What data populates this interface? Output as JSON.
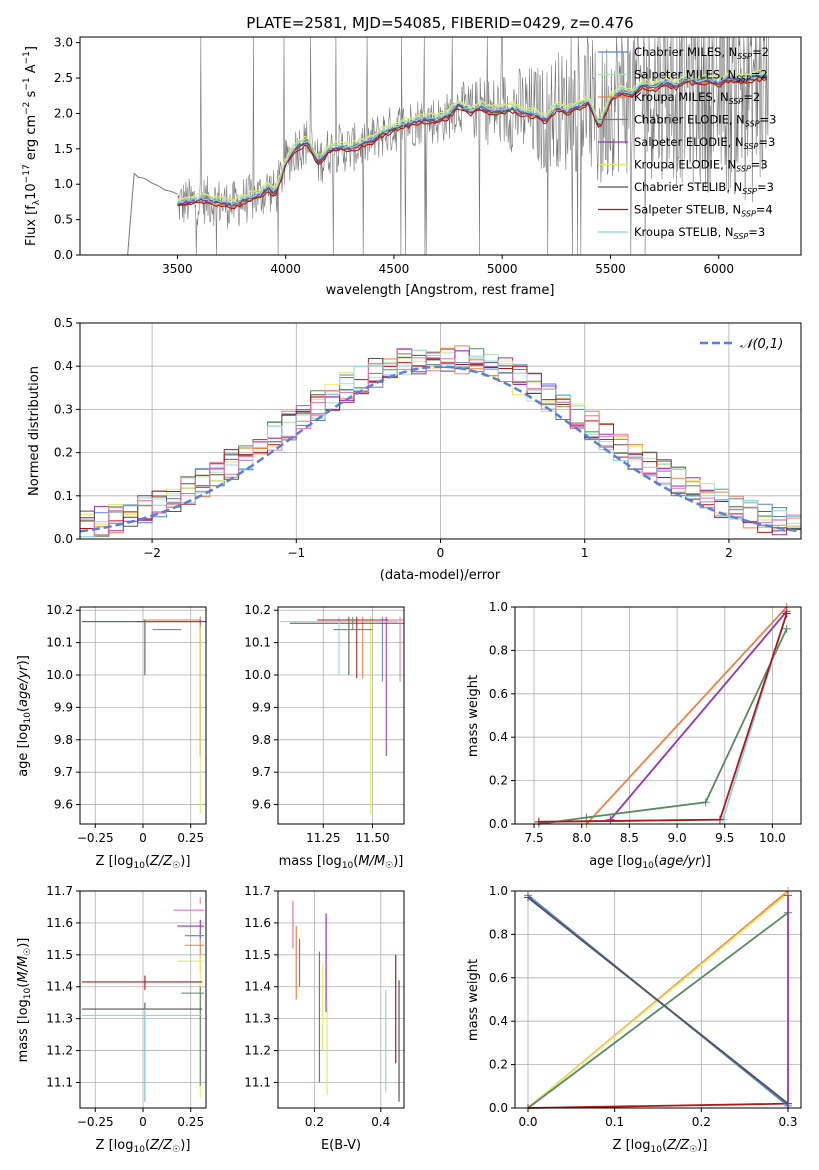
{
  "figure_title": "PLATE=2581, MJD=54085, FIBERID=0429, z=0.476",
  "chart_data": [
    {
      "id": "spectrum",
      "type": "line",
      "xlabel": "wavelength [Angstrom, rest frame]",
      "ylabel": "Flux [f_λ 10^-17 erg cm^-2 s^-1 A^-1]",
      "xlim": [
        3050,
        6380
      ],
      "ylim": [
        0,
        3.08
      ],
      "xticks": [
        3500,
        4000,
        4500,
        5000,
        5500,
        6000
      ],
      "yticks": [
        0.0,
        0.5,
        1.0,
        1.5,
        2.0,
        2.5,
        3.0
      ],
      "grid": false,
      "legend_position": "top-right",
      "legend_sub": "SSP",
      "legend": [
        {
          "name": "Chabrier MILES, N_SSP=2",
          "prefix": "Chabrier MILES, N",
          "suffix": "=2",
          "color": "#5b7fdc"
        },
        {
          "name": "Salpeter MILES, N_SSP=2",
          "prefix": "Salpeter MILES, N",
          "suffix": "=2",
          "color": "#b4e2b4"
        },
        {
          "name": "Kroupa MILES, N_SSP=2",
          "prefix": "Kroupa MILES, N",
          "suffix": "=2",
          "color": "#f28040"
        },
        {
          "name": "Chabrier ELODIE, N_SSP=3",
          "prefix": "Chabrier ELODIE, N",
          "suffix": "=3",
          "color": "#5a8a62"
        },
        {
          "name": "Salpeter ELODIE, N_SSP=3",
          "prefix": "Salpeter ELODIE, N",
          "suffix": "=3",
          "color": "#9b30c0"
        },
        {
          "name": "Kroupa ELODIE, N_SSP=3",
          "prefix": "Kroupa ELODIE, N",
          "suffix": "=3",
          "color": "#e0ec6a"
        },
        {
          "name": "Chabrier STELIB, N_SSP=3",
          "prefix": "Chabrier STELIB, N",
          "suffix": "=3",
          "color": "#555555"
        },
        {
          "name": "Salpeter STELIB, N_SSP=4",
          "prefix": "Salpeter STELIB, N",
          "suffix": "=4",
          "color": "#b01818"
        },
        {
          "name": "Kroupa STELIB, N_SSP=3",
          "prefix": "Kroupa STELIB, N",
          "suffix": "=3",
          "color": "#8ad4e4"
        }
      ],
      "model_x": [
        3500,
        3560,
        3620,
        3700,
        3760,
        3800,
        3840,
        3880,
        3920,
        3950,
        3970,
        4000,
        4050,
        4100,
        4150,
        4200,
        4250,
        4300,
        4350,
        4400,
        4450,
        4500,
        4550,
        4600,
        4650,
        4700,
        4750,
        4800,
        4850,
        4900,
        4950,
        5000,
        5050,
        5100,
        5150,
        5200,
        5250,
        5300,
        5350,
        5400,
        5450,
        5500,
        5550,
        5600,
        5650,
        5700,
        5750,
        5800,
        5850,
        5900,
        5950,
        6000,
        6050,
        6100,
        6150,
        6200
      ],
      "model_y": [
        0.72,
        0.75,
        0.78,
        0.74,
        0.7,
        0.76,
        0.8,
        0.84,
        0.95,
        0.85,
        1.02,
        1.3,
        1.52,
        1.6,
        1.3,
        1.48,
        1.52,
        1.5,
        1.56,
        1.62,
        1.72,
        1.78,
        1.84,
        1.88,
        1.92,
        1.9,
        1.96,
        2.12,
        2.02,
        2.08,
        2.02,
        2.04,
        2.06,
        2.0,
        1.98,
        1.9,
        2.08,
        2.02,
        2.1,
        2.16,
        1.8,
        2.2,
        2.3,
        2.26,
        2.4,
        2.36,
        2.44,
        2.38,
        2.48,
        2.44,
        2.46,
        2.42,
        2.5,
        2.46,
        2.48,
        2.52
      ],
      "data_continuum_x": [
        3300,
        3320,
        3350,
        3380,
        3410,
        3440,
        3470,
        3500
      ],
      "data_continuum_y": [
        1.15,
        1.1,
        1.08,
        1.02,
        0.98,
        0.92,
        0.9,
        0.86
      ]
    },
    {
      "id": "residuals",
      "type": "bar",
      "xlabel": "(data-model)/error",
      "ylabel": "Normed distribution",
      "xlim": [
        -2.5,
        2.5
      ],
      "ylim": [
        0,
        0.5
      ],
      "xticks": [
        -2,
        -1,
        0,
        1,
        2
      ],
      "yticks": [
        0.0,
        0.1,
        0.2,
        0.3,
        0.4,
        0.5
      ],
      "grid": true,
      "legend_position": "top-right",
      "reference_label": "𝒩(0,1)",
      "reference_color": "#5b7fdc",
      "bin_edges_start": -2.5,
      "bin_width": 0.1
    },
    {
      "id": "age-vs-Z",
      "type": "scatter",
      "xlabel": "Z [log10(Z/Z☉)]",
      "ylabel": "age [log10(age/yr)]",
      "xlim": [
        -0.33,
        0.33
      ],
      "ylim": [
        9.54,
        10.21
      ],
      "xticks": [
        -0.25,
        0.0,
        0.25
      ],
      "ytick_labels": [
        "9.6",
        "9.7",
        "9.8",
        "9.9",
        "10.0",
        "10.1",
        "10.2"
      ],
      "yticks": [
        9.6,
        9.7,
        9.8,
        9.9,
        10.0,
        10.1,
        10.2
      ],
      "grid": true
    },
    {
      "id": "age-vs-mass",
      "type": "scatter",
      "xlabel": "mass [log10(M/M☉)]",
      "ylabel": "",
      "xlim": [
        11.02,
        11.66
      ],
      "ylim": [
        9.54,
        10.21
      ],
      "xticks": [
        11.25,
        11.5
      ],
      "xtick_labels": [
        "11.25",
        "11.50"
      ],
      "yticks": [
        9.6,
        9.7,
        9.8,
        9.9,
        10.0,
        10.1,
        10.2
      ],
      "ytick_labels": [
        "9.6",
        "9.7",
        "9.8",
        "9.9",
        "10.0",
        "10.1",
        "10.2"
      ],
      "grid": true
    },
    {
      "id": "mass-weight-vs-age",
      "type": "line",
      "xlabel": "age [log10(age/yr)]",
      "ylabel": "mass weight",
      "xlim": [
        7.3,
        10.3
      ],
      "ylim": [
        0,
        1.0
      ],
      "xticks": [
        7.5,
        8.0,
        8.5,
        9.0,
        9.5,
        10.0
      ],
      "xtick_labels": [
        "7.5",
        "8.0",
        "8.5",
        "9.0",
        "9.5",
        "10.0"
      ],
      "yticks": [
        0.0,
        0.2,
        0.4,
        0.6,
        0.8,
        1.0
      ],
      "ytick_labels": [
        "0.0",
        "0.2",
        "0.4",
        "0.6",
        "0.8",
        "1.0"
      ],
      "grid": true,
      "series": [
        {
          "color": "#f28040",
          "x": [
            8.05,
            10.15
          ],
          "y": [
            0.0,
            1.0
          ]
        },
        {
          "color": "#e0ec6a",
          "x": [
            8.3,
            10.15
          ],
          "y": [
            0.02,
            0.98
          ]
        },
        {
          "color": "#9b30c0",
          "x": [
            8.3,
            10.15
          ],
          "y": [
            0.02,
            0.98
          ]
        },
        {
          "color": "#5a8a62",
          "x": [
            7.55,
            8.05,
            9.3,
            10.15
          ],
          "y": [
            0.0,
            0.03,
            0.1,
            0.9
          ]
        },
        {
          "color": "#8ad4e4",
          "x": [
            7.55,
            9.48,
            10.15
          ],
          "y": [
            0.01,
            0.02,
            0.97
          ]
        },
        {
          "color": "#b01818",
          "x": [
            7.55,
            9.45,
            10.15
          ],
          "y": [
            0.01,
            0.02,
            0.97
          ]
        }
      ]
    },
    {
      "id": "mass-vs-Z",
      "type": "scatter",
      "xlabel": "Z [log10(Z/Z☉)]",
      "ylabel": "mass [log10(M/M☉)]",
      "xlim": [
        -0.33,
        0.33
      ],
      "ylim": [
        11.02,
        11.7
      ],
      "xticks": [
        -0.25,
        0.0,
        0.25
      ],
      "yticks": [
        11.1,
        11.2,
        11.3,
        11.4,
        11.5,
        11.6,
        11.7
      ],
      "ytick_labels": [
        "11.1",
        "11.2",
        "11.3",
        "11.4",
        "11.5",
        "11.6",
        "11.7"
      ],
      "grid": true
    },
    {
      "id": "mass-vs-EBV",
      "type": "scatter",
      "xlabel": "E(B-V)",
      "ylabel": "",
      "xlim": [
        0.09,
        0.47
      ],
      "ylim": [
        11.02,
        11.7
      ],
      "xticks": [
        0.2,
        0.4
      ],
      "xtick_labels": [
        "0.2",
        "0.4"
      ],
      "yticks": [
        11.1,
        11.2,
        11.3,
        11.4,
        11.5,
        11.6,
        11.7
      ],
      "ytick_labels": [
        "11.1",
        "11.2",
        "11.3",
        "11.4",
        "11.5",
        "11.6",
        "11.7"
      ],
      "grid": true
    },
    {
      "id": "mass-weight-vs-Z",
      "type": "line",
      "xlabel": "Z [log10(Z/Z☉)]",
      "ylabel": "mass weight",
      "xlim": [
        -0.015,
        0.315
      ],
      "ylim": [
        0,
        1.0
      ],
      "xticks": [
        0.0,
        0.1,
        0.2,
        0.3
      ],
      "xtick_labels": [
        "0.0",
        "0.1",
        "0.2",
        "0.3"
      ],
      "yticks": [
        0.0,
        0.2,
        0.4,
        0.6,
        0.8,
        1.0
      ],
      "ytick_labels": [
        "0.0",
        "0.2",
        "0.4",
        "0.6",
        "0.8",
        "1.0"
      ],
      "grid": true,
      "series": [
        {
          "color": "#f28040",
          "x": [
            0.0,
            0.3
          ],
          "y": [
            0.0,
            1.0
          ]
        },
        {
          "color": "#e0ec6a",
          "x": [
            0.0,
            0.3
          ],
          "y": [
            0.0,
            0.99
          ]
        },
        {
          "color": "#5a8a62",
          "x": [
            0.0,
            0.3
          ],
          "y": [
            0.0,
            0.9
          ]
        },
        {
          "color": "#9b30c0",
          "x": [
            0.3,
            0.3
          ],
          "y": [
            0.0,
            0.98
          ]
        },
        {
          "color": "#b01818",
          "x": [
            0.0,
            0.3
          ],
          "y": [
            0.0,
            0.02
          ]
        },
        {
          "color": "#8ad4e4",
          "x": [
            0.0,
            0.3
          ],
          "y": [
            0.97,
            0.02
          ]
        },
        {
          "color": "#5b7fdc",
          "x": [
            0.0,
            0.3
          ],
          "y": [
            0.98,
            0.01
          ]
        },
        {
          "color": "#555555",
          "x": [
            0.0,
            0.3
          ],
          "y": [
            0.97,
            0.02
          ]
        }
      ]
    }
  ]
}
